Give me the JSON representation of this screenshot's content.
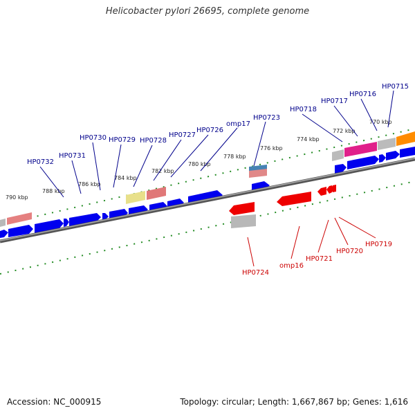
{
  "title": "Helicobacter pylori 26695, complete genome",
  "footer": {
    "accession": "Accession: NC_000915",
    "summary": "Topology: circular; Length: 1,667,867 bp; Genes: 1,616"
  },
  "colors": {
    "forward_gene": "#0000ee",
    "reverse_gene": "#ee0000",
    "forward_label": "#00008b",
    "reverse_label": "#cc0000",
    "backbone": "#808080",
    "tick": "#228b22"
  },
  "scale_labels": [
    "790 kbp",
    "788 kbp",
    "786 kbp",
    "784 kbp",
    "782 kbp",
    "780 kbp",
    "778 kbp",
    "776 kbp",
    "774 kbp",
    "772 kbp",
    "770 kbp"
  ],
  "forward_labels": [
    "HP0732",
    "HP0731",
    "HP0730",
    "HP0729",
    "HP0728",
    "HP0727",
    "HP0726",
    "omp17",
    "HP0723",
    "HP0718",
    "HP0717",
    "HP0716",
    "HP0715"
  ],
  "reverse_labels": [
    "HP0724",
    "omp16",
    "HP0721",
    "HP0720",
    "HP0719"
  ]
}
